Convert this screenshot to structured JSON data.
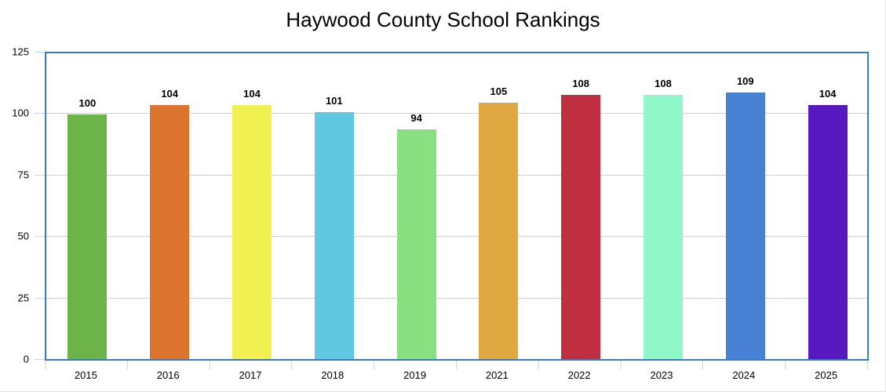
{
  "chart_data": {
    "type": "bar",
    "title": "Haywood County School Rankings",
    "xlabel": "",
    "ylabel": "",
    "ylim": [
      0,
      125
    ],
    "yticks": [
      0,
      25,
      50,
      75,
      100,
      125
    ],
    "grid": true,
    "legend": "none",
    "categories": [
      "2015",
      "2016",
      "2017",
      "2018",
      "2019",
      "2021",
      "2022",
      "2023",
      "2024",
      "2025"
    ],
    "values": [
      100,
      104,
      104,
      101,
      94,
      105,
      108,
      108,
      109,
      104
    ],
    "colors": [
      "#6db448",
      "#dc7430",
      "#f0f050",
      "#60c8e0",
      "#88e080",
      "#e0a840",
      "#c03040",
      "#90f8c8",
      "#4880d4",
      "#5818c0"
    ],
    "axis_color": "#3a78c8"
  }
}
